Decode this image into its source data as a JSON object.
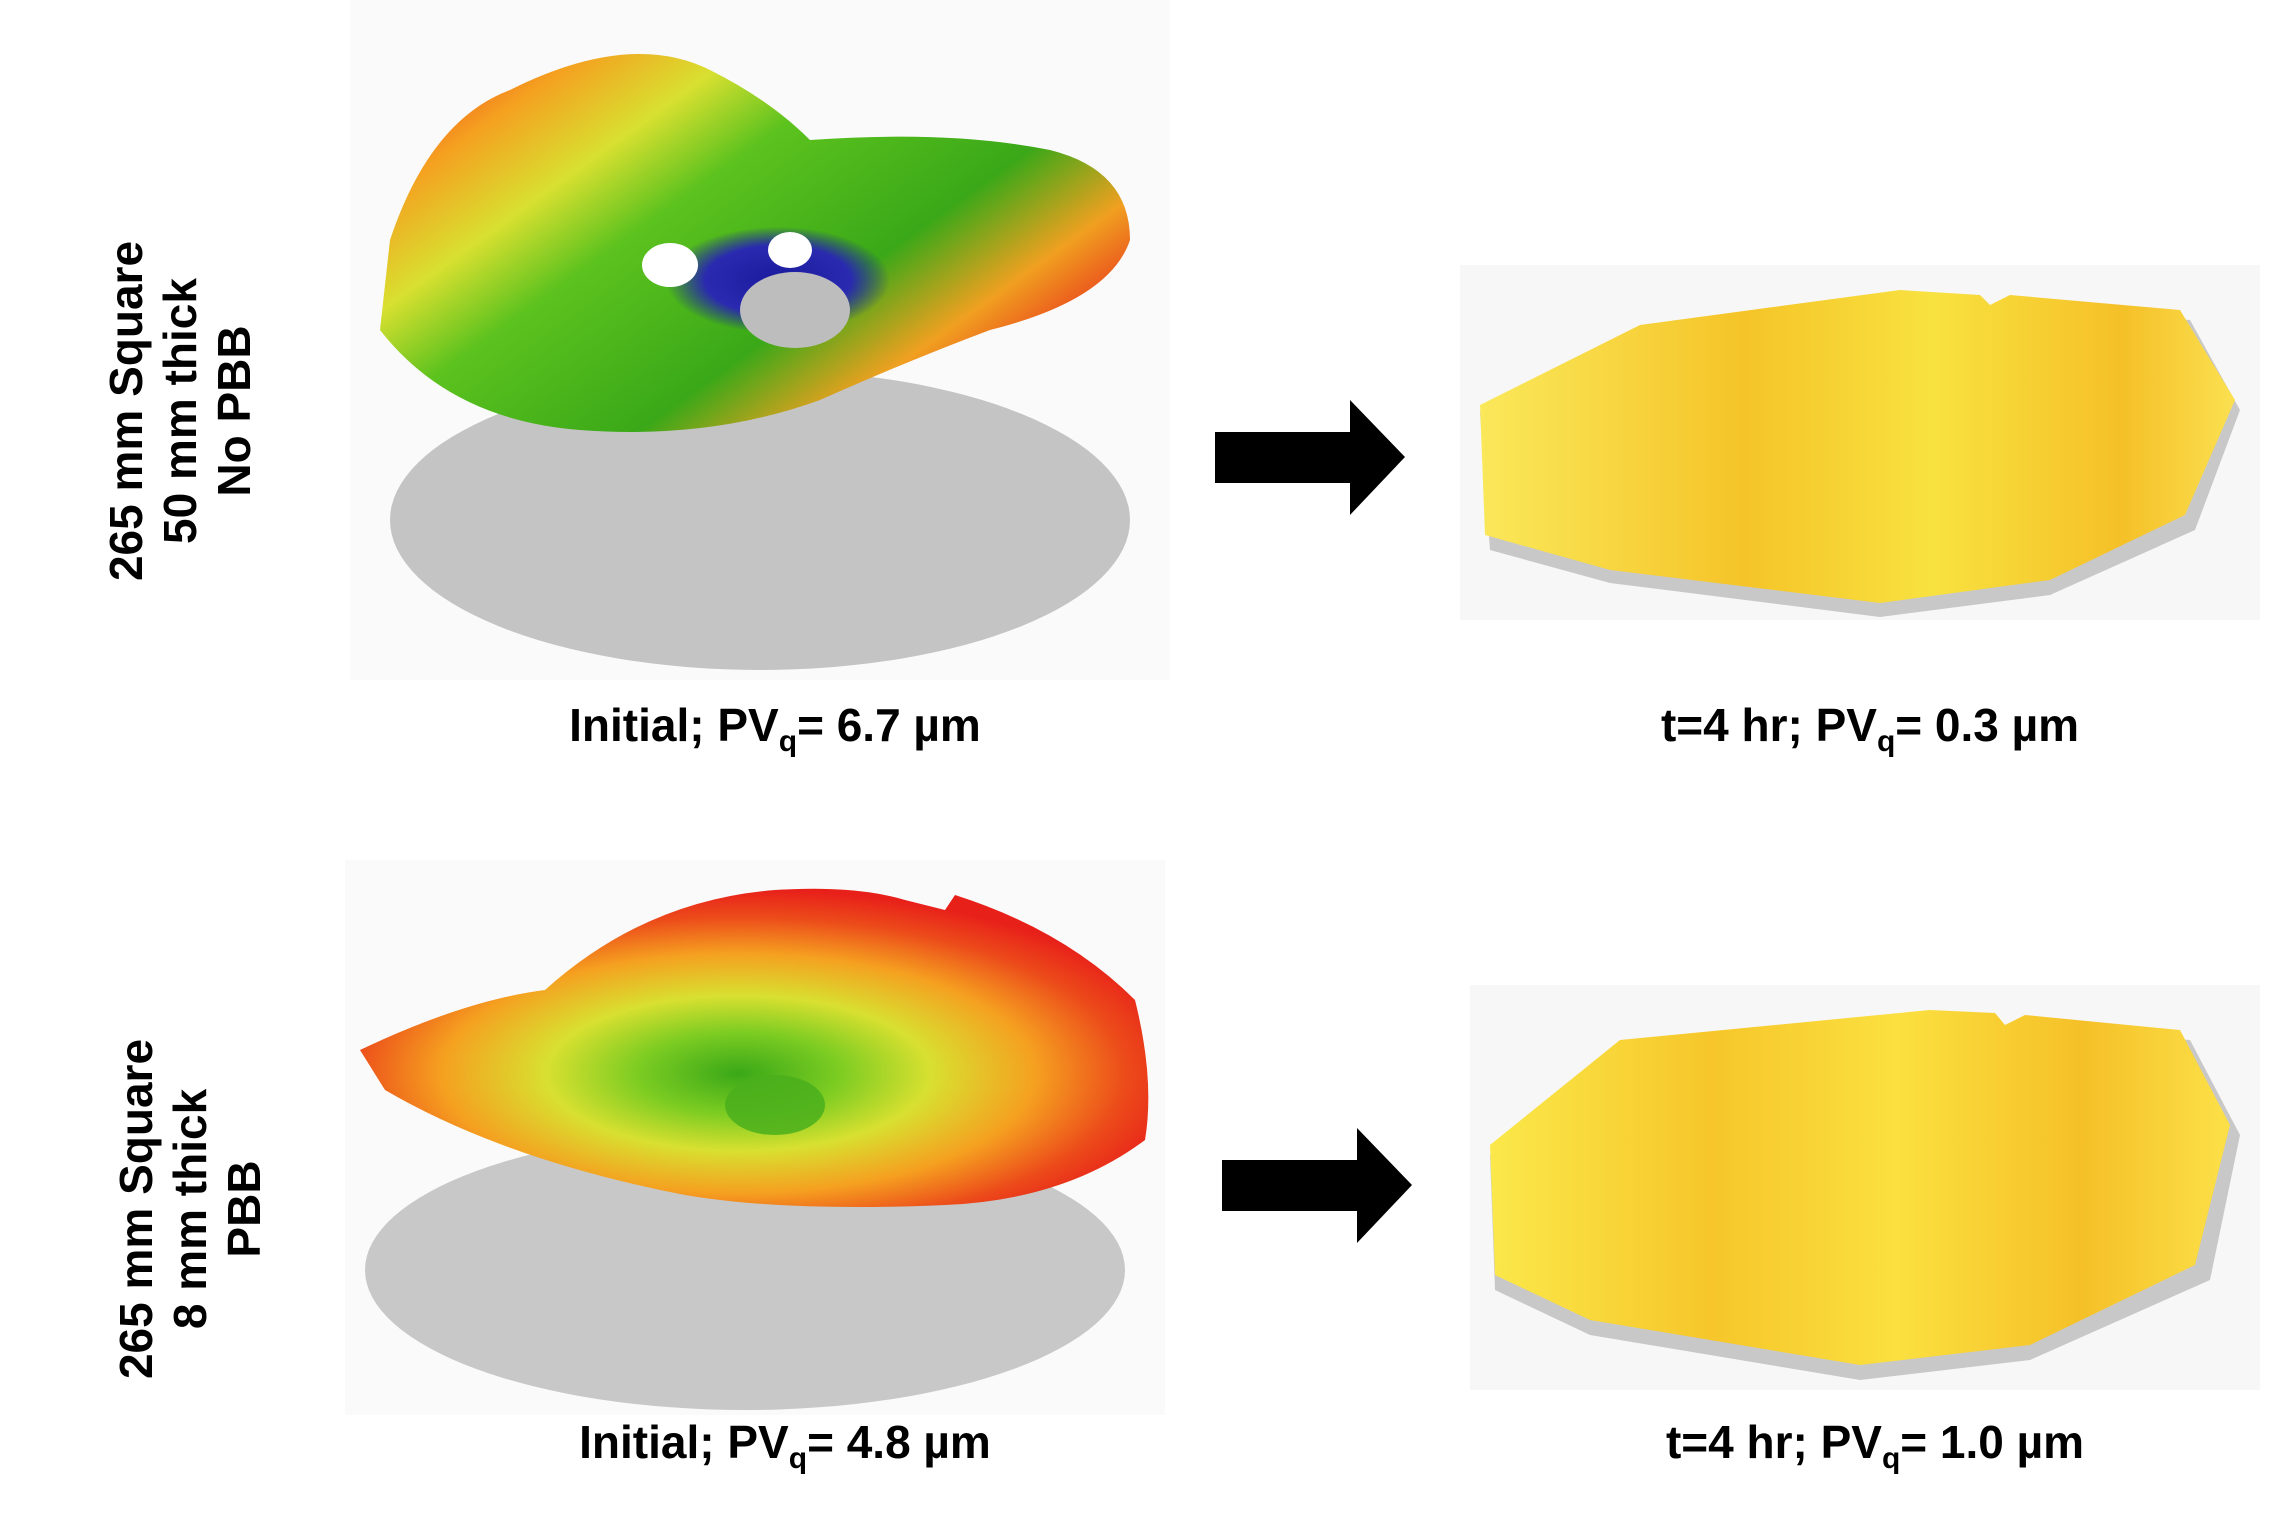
{
  "rows": [
    {
      "label_lines": [
        "265 mm Square",
        "50 mm thick",
        "No PBB"
      ],
      "initial_caption": {
        "prefix": "Initial; PV",
        "sub": "q",
        "value": "= 6.7 µm"
      },
      "final_caption": {
        "prefix": "t=4 hr;  PV",
        "sub": "q",
        "value": "= 0.3 µm"
      }
    },
    {
      "label_lines": [
        "265 mm Square",
        "8 mm thick",
        "PBB"
      ],
      "initial_caption": {
        "prefix": "Initial; PV",
        "sub": "q",
        "value": "= 4.8 µm"
      },
      "final_caption": {
        "prefix": "t=4 hr;  PV",
        "sub": "q",
        "value": "= 1.0 µm"
      }
    }
  ],
  "icons": {
    "arrow": "right-arrow-icon"
  },
  "colors": {
    "high": "#e8201a",
    "mid": "#f5e631",
    "low": "#5cc21e",
    "deep": "#1a1a9e",
    "flat": "#f6d22c",
    "shadow": "#c4c4c4"
  }
}
